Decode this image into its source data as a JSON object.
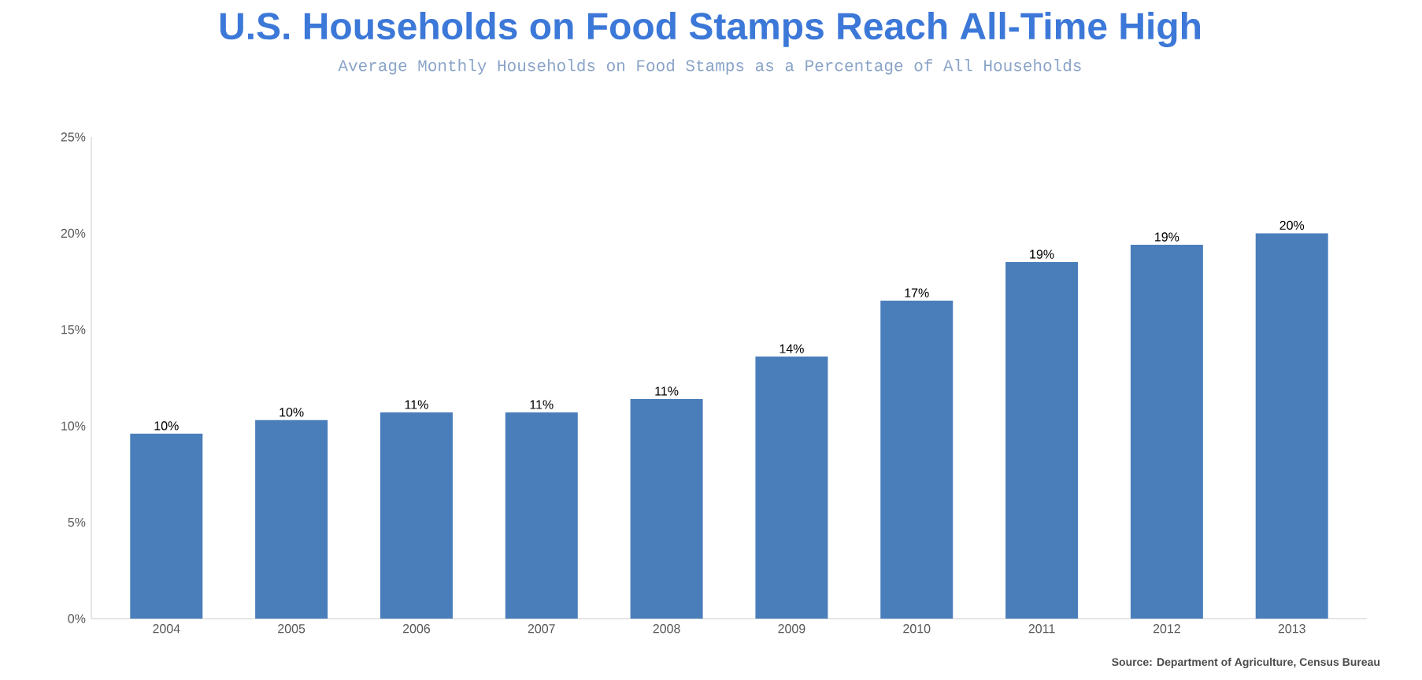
{
  "chart_data": {
    "type": "bar",
    "title": "U.S. Households on Food Stamps Reach All-Time High",
    "subtitle": "Average Monthly Households on Food Stamps as a Percentage of All Households",
    "categories": [
      "2004",
      "2005",
      "2006",
      "2007",
      "2008",
      "2009",
      "2010",
      "2011",
      "2012",
      "2013"
    ],
    "values": [
      9.6,
      10.3,
      10.7,
      10.7,
      11.4,
      13.6,
      16.5,
      18.5,
      19.4,
      20.0
    ],
    "value_labels": [
      "10%",
      "10%",
      "11%",
      "11%",
      "11%",
      "14%",
      "17%",
      "19%",
      "19%",
      "20%"
    ],
    "color": "#4a7ebb",
    "ylim": [
      0,
      25
    ],
    "yticks": [
      {
        "value": 0,
        "label": "0%"
      },
      {
        "value": 5,
        "label": "5%"
      },
      {
        "value": 10,
        "label": "10%"
      },
      {
        "value": 15,
        "label": "15%"
      },
      {
        "value": 20,
        "label": "20%"
      },
      {
        "value": 25,
        "label": "25%"
      }
    ],
    "annotations": [
      "Source: Department of Agriculture, Census Bureau"
    ]
  }
}
